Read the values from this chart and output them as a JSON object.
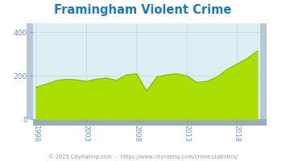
{
  "title": "Framingham Violent Crime",
  "title_color": "#1a7abf",
  "years": [
    1998,
    1999,
    2000,
    2001,
    2002,
    2003,
    2004,
    2005,
    2006,
    2007,
    2008,
    2009,
    2010,
    2011,
    2012,
    2013,
    2014,
    2015,
    2016,
    2017,
    2018,
    2019,
    2020
  ],
  "values": [
    148,
    162,
    178,
    185,
    182,
    175,
    185,
    190,
    180,
    205,
    210,
    130,
    195,
    205,
    210,
    200,
    170,
    175,
    195,
    230,
    255,
    280,
    315
  ],
  "fill_color": "#aadd00",
  "line_color": "#88bb00",
  "bg_color": "#ddeef5",
  "outer_bg": "#ffffff",
  "ylim": [
    0,
    440
  ],
  "yticks": [
    0,
    200,
    400
  ],
  "xticks": [
    1998,
    2003,
    2008,
    2013,
    2018
  ],
  "footer": "© 2025 CityRating.com  -  https://www.cityrating.com/crime-statistics/",
  "footer_color": "#999999",
  "grid_color": "#c5d8e8",
  "tick_color": "#6699bb",
  "panel3d_color": "#b8c8d8",
  "panel3d_dark": "#9aacbc"
}
